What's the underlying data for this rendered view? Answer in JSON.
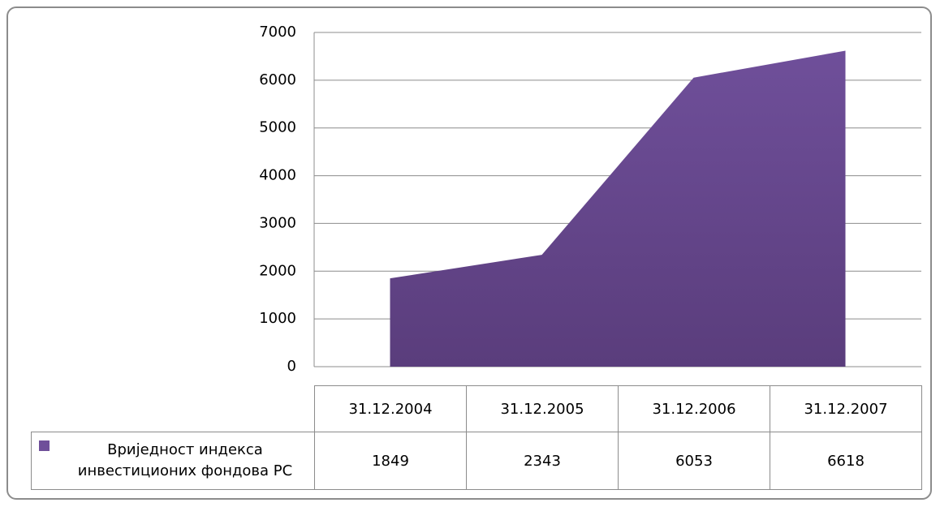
{
  "chart_data": {
    "type": "area",
    "categories": [
      "31.12.2004",
      "31.12.2005",
      "31.12.2006",
      "31.12.2007"
    ],
    "series": [
      {
        "name": "Вриједност индекса инвестиционих фондова РС",
        "color": "#6f4f9a",
        "values": [
          1849,
          2343,
          6053,
          6618
        ]
      }
    ],
    "ylim": [
      0,
      7000
    ],
    "yticks": [
      0,
      1000,
      2000,
      3000,
      4000,
      5000,
      6000,
      7000
    ],
    "grid": true
  }
}
